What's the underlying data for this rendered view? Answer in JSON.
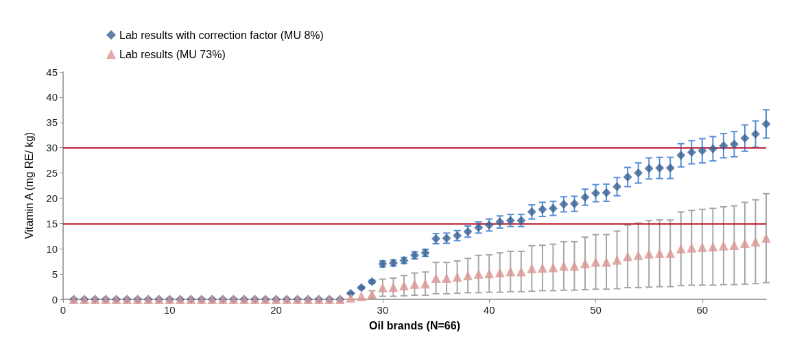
{
  "chart_data": {
    "type": "scatter",
    "xlabel": "Oil brands (N=66)",
    "ylabel": "Vitamin A (mg RE/ kg)",
    "x": [
      1,
      2,
      3,
      4,
      5,
      6,
      7,
      8,
      9,
      10,
      11,
      12,
      13,
      14,
      15,
      16,
      17,
      18,
      19,
      20,
      21,
      22,
      23,
      24,
      25,
      26,
      27,
      28,
      29,
      30,
      31,
      32,
      33,
      34,
      35,
      36,
      37,
      38,
      39,
      40,
      41,
      42,
      43,
      44,
      45,
      46,
      47,
      48,
      49,
      50,
      51,
      52,
      53,
      54,
      55,
      56,
      57,
      58,
      59,
      60,
      61,
      62,
      63,
      64,
      65,
      66
    ],
    "xlim": [
      0,
      66
    ],
    "xticks": [
      0,
      10,
      20,
      30,
      40,
      50,
      60
    ],
    "ylim": [
      0,
      45
    ],
    "yticks": [
      0,
      5,
      10,
      15,
      20,
      25,
      30,
      35,
      40,
      45
    ],
    "grid": false,
    "legend": "top left",
    "series": [
      {
        "name": "Lab results with correction factor (MU 8%)",
        "color": "#376092",
        "marker": "diamond",
        "values": [
          0,
          0,
          0,
          0,
          0,
          0,
          0,
          0,
          0,
          0,
          0,
          0,
          0,
          0,
          0,
          0,
          0,
          0,
          0,
          0,
          0,
          0,
          0,
          0,
          0,
          0,
          1.2,
          2.3,
          3.5,
          7.0,
          7.2,
          7.7,
          8.7,
          9.2,
          12.0,
          12.1,
          12.6,
          13.4,
          14.2,
          14.7,
          15.3,
          15.6,
          15.6,
          17.3,
          17.8,
          18.0,
          18.8,
          18.9,
          20.2,
          21.0,
          21.1,
          22.3,
          24.2,
          25.0,
          25.9,
          26.0,
          26.0,
          28.5,
          29.1,
          29.4,
          29.8,
          30.4,
          30.7,
          31.9,
          32.7,
          34.7
        ],
        "errors": [
          null,
          null,
          null,
          null,
          null,
          null,
          null,
          null,
          null,
          null,
          null,
          null,
          null,
          null,
          null,
          null,
          null,
          null,
          null,
          null,
          null,
          null,
          null,
          null,
          null,
          null,
          0.1,
          0.2,
          0.3,
          0.6,
          0.6,
          0.6,
          0.7,
          0.7,
          1.0,
          1.0,
          1.0,
          1.1,
          1.1,
          1.2,
          1.2,
          1.2,
          1.2,
          1.4,
          1.4,
          1.4,
          1.5,
          1.5,
          1.6,
          1.7,
          1.7,
          1.8,
          1.9,
          2.0,
          2.1,
          2.1,
          2.1,
          2.3,
          2.3,
          2.4,
          2.4,
          2.4,
          2.5,
          2.6,
          2.6,
          2.8
        ]
      },
      {
        "name": "Lab results (MU 73%)",
        "color": "#d99694",
        "marker": "triangle",
        "values": [
          0,
          0,
          0,
          0,
          0,
          0,
          0,
          0,
          0,
          0,
          0,
          0,
          0,
          0,
          0,
          0,
          0,
          0,
          0,
          0,
          0,
          0,
          0,
          0,
          0,
          0,
          0.3,
          0.6,
          1.0,
          2.3,
          2.4,
          2.7,
          3.0,
          3.1,
          4.2,
          4.2,
          4.4,
          4.7,
          5.0,
          5.1,
          5.3,
          5.5,
          5.5,
          6.1,
          6.2,
          6.3,
          6.6,
          6.6,
          7.1,
          7.4,
          7.4,
          7.8,
          8.5,
          8.7,
          9.0,
          9.1,
          9.1,
          10.0,
          10.2,
          10.3,
          10.4,
          10.6,
          10.7,
          11.1,
          11.4,
          12.1
        ],
        "errors": [
          null,
          null,
          null,
          null,
          null,
          null,
          null,
          null,
          null,
          null,
          null,
          null,
          null,
          null,
          null,
          null,
          null,
          null,
          null,
          null,
          null,
          null,
          null,
          null,
          null,
          null,
          null,
          null,
          0.7,
          1.7,
          1.8,
          2.0,
          2.2,
          2.3,
          3.1,
          3.1,
          3.2,
          3.4,
          3.7,
          3.7,
          3.9,
          4.0,
          4.0,
          4.5,
          4.5,
          4.6,
          4.8,
          4.8,
          5.2,
          5.4,
          5.4,
          5.7,
          6.2,
          6.4,
          6.6,
          6.6,
          6.6,
          7.3,
          7.4,
          7.5,
          7.6,
          7.7,
          7.8,
          8.1,
          8.3,
          8.8
        ]
      }
    ],
    "ref_lines": [
      {
        "axis": "y",
        "value": 15,
        "color": "#c0243c"
      },
      {
        "axis": "y",
        "value": 30,
        "color": "#c0243c"
      }
    ]
  }
}
